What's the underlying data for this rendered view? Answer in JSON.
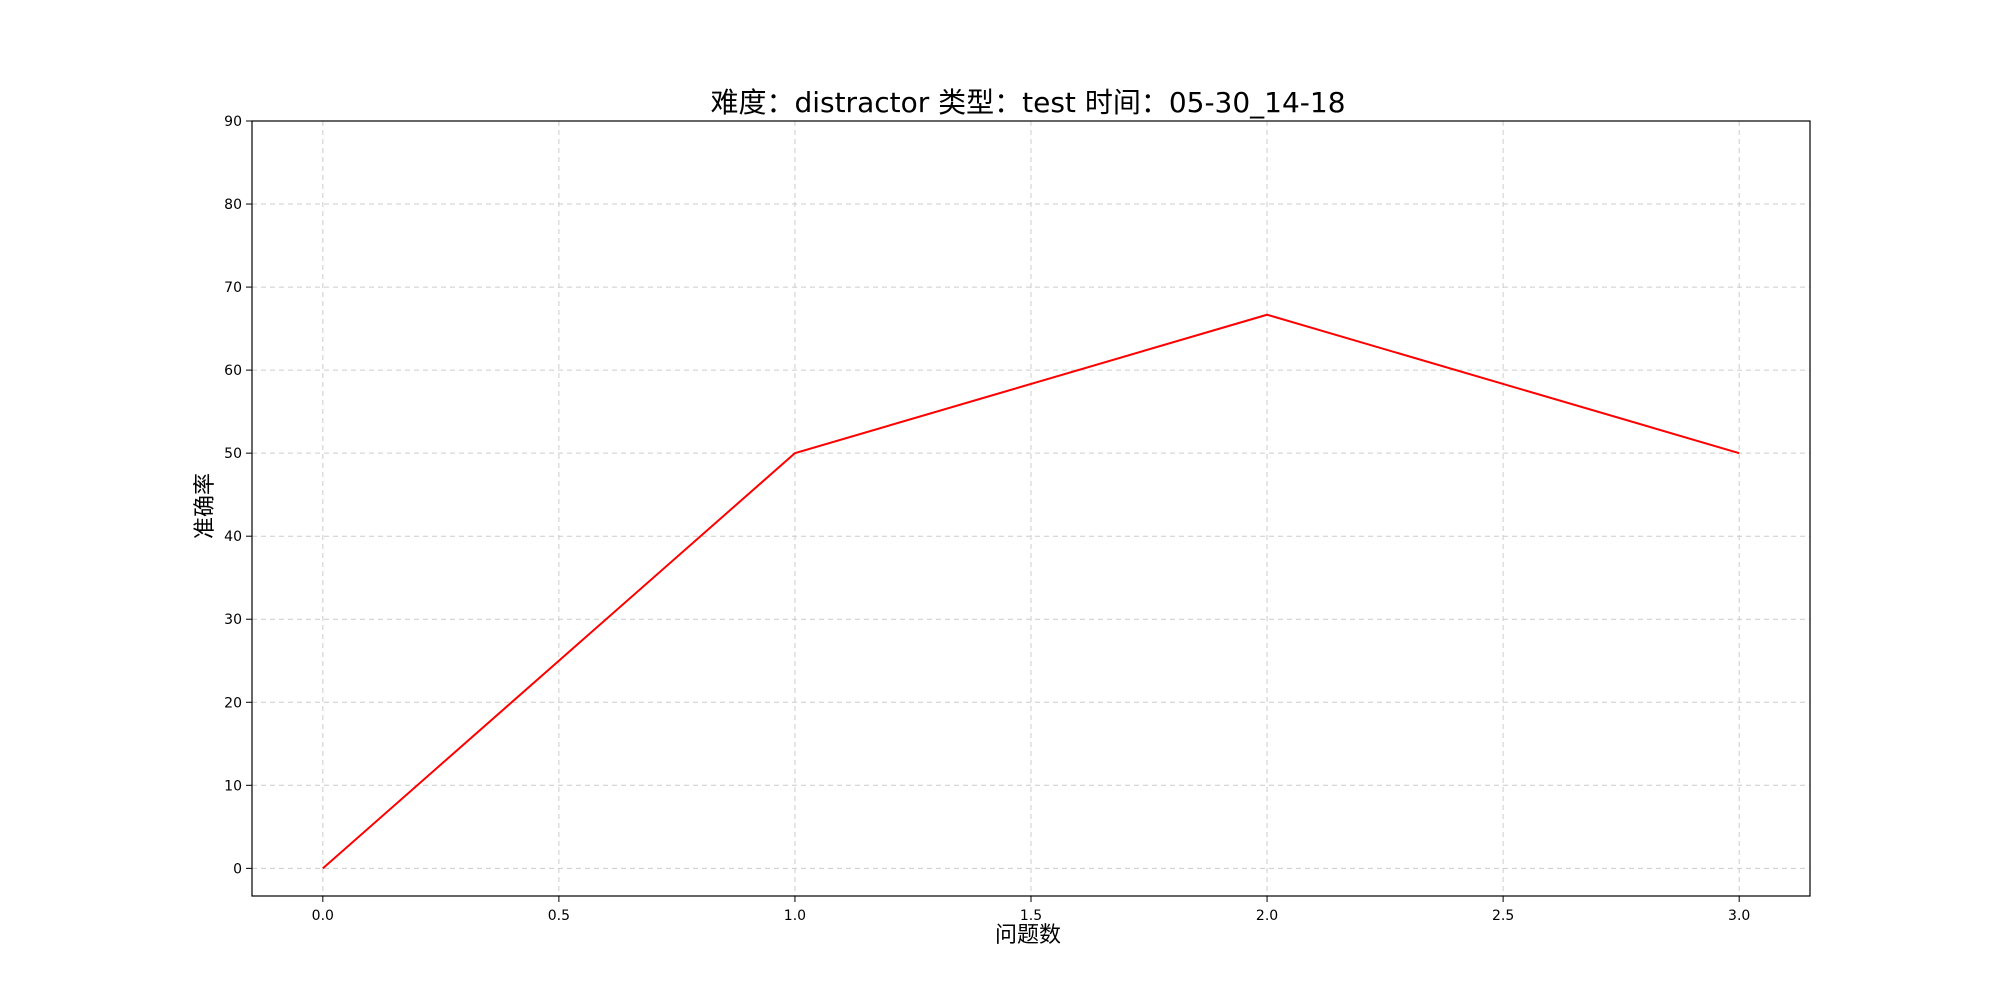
{
  "chart_data": {
    "type": "line",
    "title": "难度：distractor 类型：test 时间：05-30_14-18",
    "xlabel": "问题数",
    "ylabel": "准确率",
    "x": [
      0,
      1,
      2,
      3
    ],
    "series": [
      {
        "values": [
          0,
          50,
          66.67,
          50
        ],
        "color": "#ff0000"
      }
    ],
    "xlim": [
      -0.15,
      3.15
    ],
    "ylim": [
      -3.33,
      90
    ],
    "xticks": [
      0.0,
      0.5,
      1.0,
      1.5,
      2.0,
      2.5,
      3.0
    ],
    "xtick_labels": [
      "0.0",
      "0.5",
      "1.0",
      "1.5",
      "2.0",
      "2.5",
      "3.0"
    ],
    "yticks": [
      0,
      10,
      20,
      30,
      40,
      50,
      60,
      70,
      80,
      90
    ],
    "ytick_labels": [
      "0",
      "10",
      "20",
      "30",
      "40",
      "50",
      "60",
      "70",
      "80",
      "90"
    ],
    "grid": true,
    "grid_color": "#cccccc",
    "axis_color": "#000000"
  }
}
